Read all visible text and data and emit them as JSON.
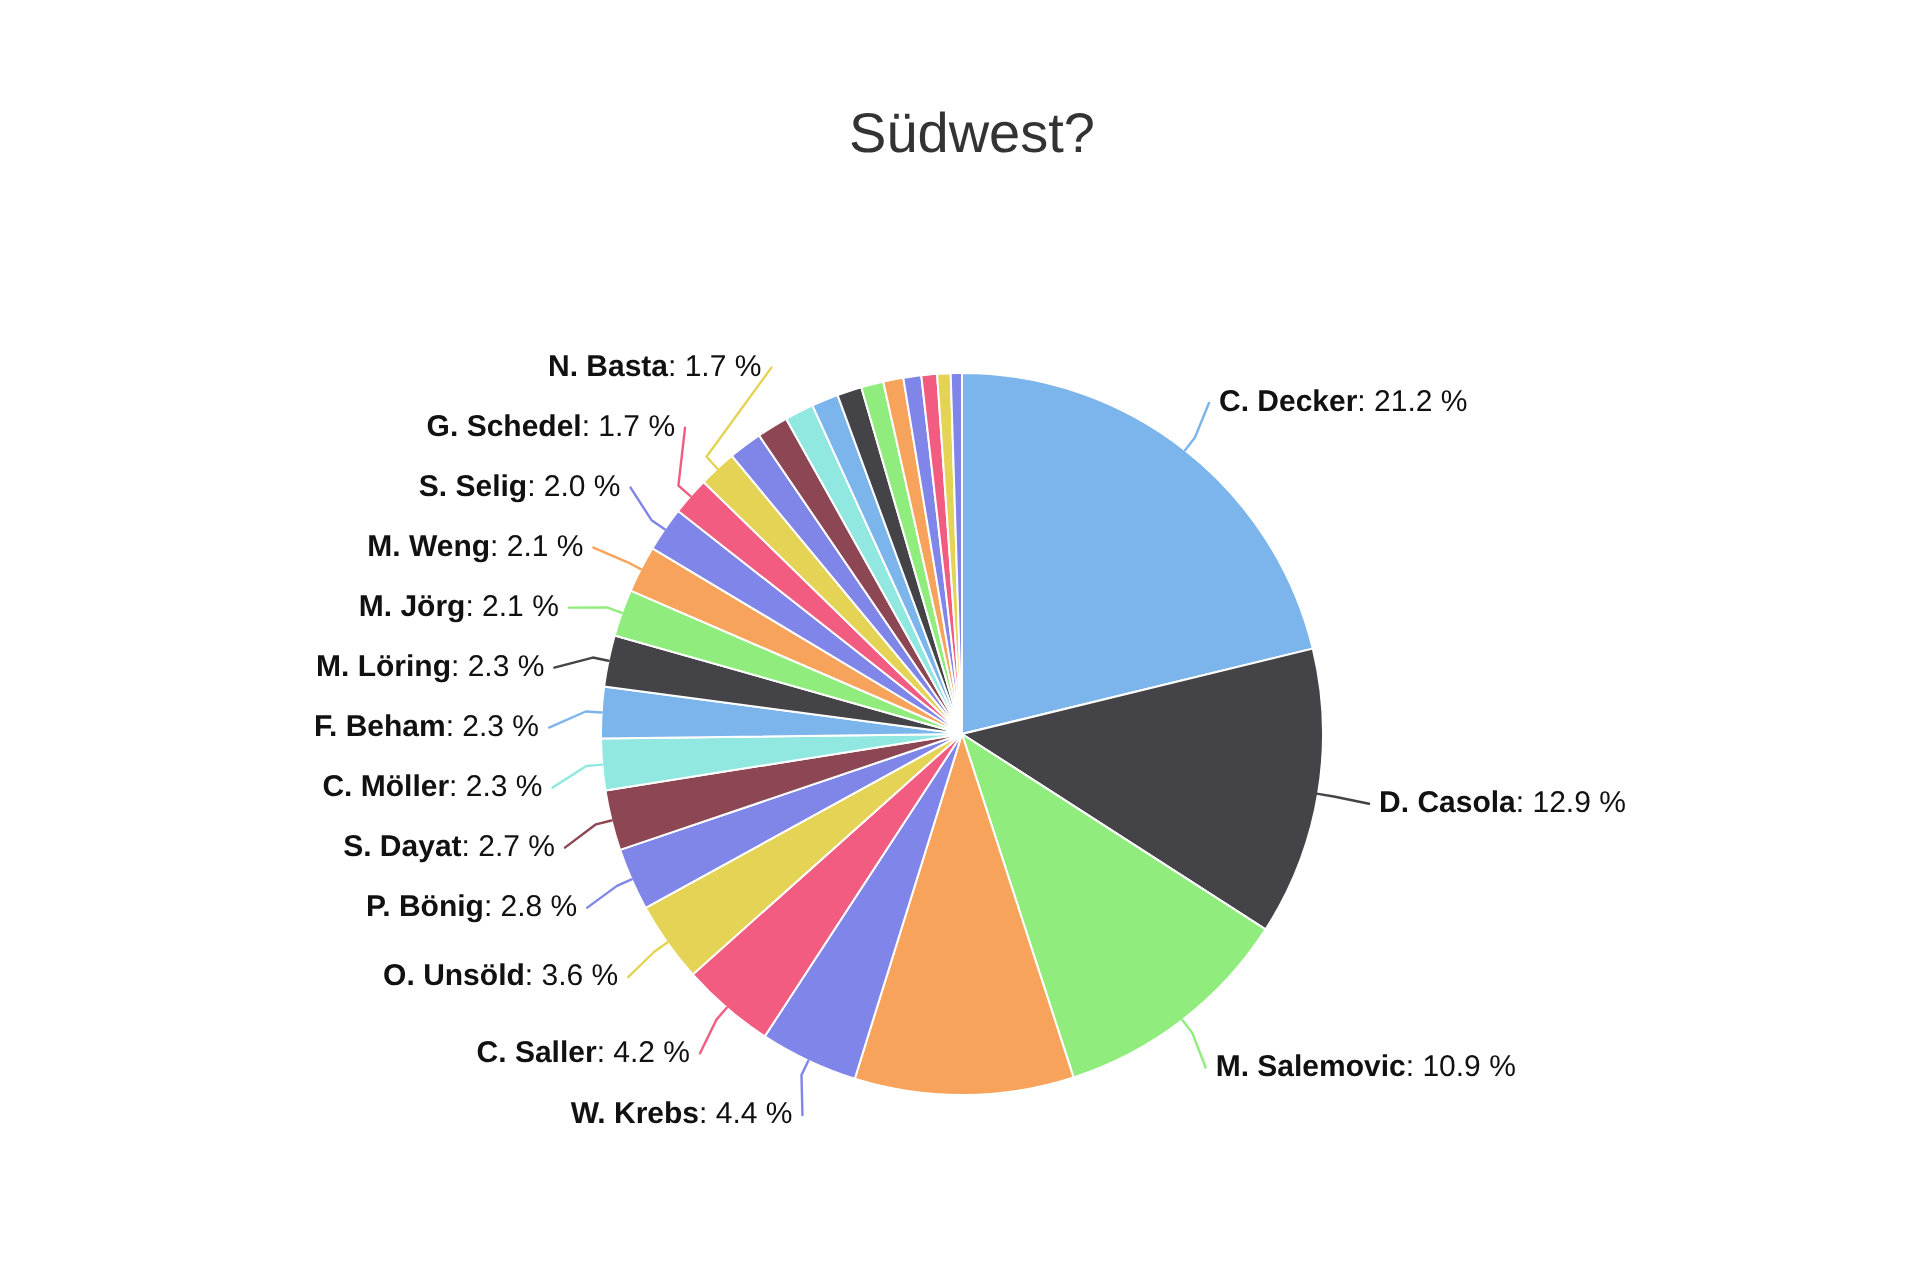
{
  "chart_data": {
    "type": "pie",
    "title": "Südwest?",
    "categories": [
      "C. Decker",
      "D. Casola",
      "M. Salemovic",
      null,
      "W. Krebs",
      "C. Saller",
      "O. Unsöld",
      "P. Bönig",
      "S. Dayat",
      "C. Möller",
      "F. Beham",
      "M. Löring",
      "M. Jörg",
      "M. Weng",
      "S. Selig",
      "G. Schedel",
      "N. Basta",
      null,
      null,
      null,
      null,
      null,
      null,
      null,
      null,
      null,
      null,
      null
    ],
    "values": [
      21.2,
      12.9,
      10.9,
      9.8,
      4.4,
      4.2,
      3.6,
      2.8,
      2.7,
      2.3,
      2.3,
      2.3,
      2.1,
      2.1,
      2.0,
      1.7,
      1.7,
      1.5,
      1.4,
      1.3,
      1.2,
      1.1,
      1.0,
      0.9,
      0.8,
      0.7,
      0.6,
      0.5
    ],
    "value_labels": [
      ": 21.2 %",
      ": 12.9 %",
      ": 10.9 %",
      null,
      ": 4.4 %",
      ": 4.2 %",
      ": 3.6 %",
      ": 2.8 %",
      ": 2.7 %",
      ": 2.3 %",
      ": 2.3 %",
      ": 2.3 %",
      ": 2.1 %",
      ": 2.1 %",
      ": 2.0 %",
      ": 1.7 %",
      ": 1.7 %",
      null,
      null,
      null,
      null,
      null,
      null,
      null,
      null,
      null,
      null,
      null
    ],
    "colors": [
      "#7cb5ec",
      "#434348",
      "#90ed7d",
      "#f7a35c",
      "#8085e9",
      "#f15c80",
      "#e4d354",
      "#8085e8",
      "#8d4653",
      "#91e8e1",
      "#7cb5ec",
      "#434348",
      "#90ed7d",
      "#f7a35c",
      "#8085e9",
      "#f15c80",
      "#e4d354",
      "#8085e8",
      "#8d4653",
      "#91e8e1",
      "#7cb5ec",
      "#434348",
      "#90ed7d",
      "#f7a35c",
      "#8085e9",
      "#f15c80",
      "#e4d354",
      "#8085e8"
    ]
  }
}
